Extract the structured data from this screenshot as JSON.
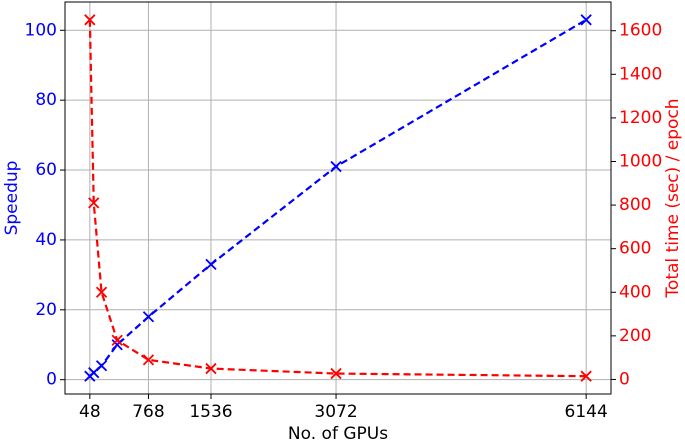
{
  "chart_data": {
    "type": "line",
    "x_label": "No. of GPUs",
    "y_label": "Speedup",
    "y2_label": "Total time (sec) / epoch",
    "x": [
      48,
      96,
      192,
      384,
      768,
      1536,
      3072,
      6144
    ],
    "series": [
      {
        "name": "Speedup",
        "color": "#0000ff",
        "values": [
          1,
          2,
          4,
          10,
          18,
          33,
          61,
          103
        ]
      },
      {
        "name": "Total time (sec) / epoch",
        "color": "#ff0000",
        "axis": "y2",
        "values": [
          1650,
          810,
          400,
          180,
          90,
          50,
          27,
          15
        ]
      }
    ],
    "xlim": [
      -257,
      6449
    ],
    "xticks": [
      48,
      768,
      1536,
      3072,
      6144
    ],
    "ylim": [
      -4.1,
      108.1
    ],
    "yticks": [
      0,
      20,
      40,
      60,
      80,
      100
    ],
    "y2lim": [
      -66.75,
      1731.75
    ],
    "y2ticks": [
      0,
      200,
      400,
      600,
      800,
      1000,
      1200,
      1400,
      1600
    ],
    "grid": true,
    "line_style": "dashed",
    "marker": "x"
  }
}
